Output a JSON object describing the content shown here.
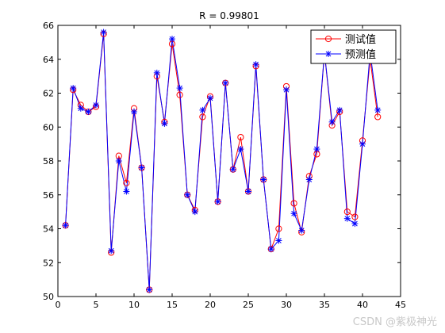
{
  "chart_data": {
    "type": "line",
    "title": "R = 0.99801",
    "xlabel": "",
    "ylabel": "",
    "xlim": [
      0,
      45
    ],
    "ylim": [
      50,
      66
    ],
    "x_ticks": [
      0,
      5,
      10,
      15,
      20,
      25,
      30,
      35,
      40,
      45
    ],
    "y_ticks": [
      50,
      52,
      54,
      56,
      58,
      60,
      62,
      64,
      66
    ],
    "grid": false,
    "legend_position": "top-right",
    "x": [
      1,
      2,
      3,
      4,
      5,
      6,
      7,
      8,
      9,
      10,
      11,
      12,
      13,
      14,
      15,
      16,
      17,
      18,
      19,
      20,
      21,
      22,
      23,
      24,
      25,
      26,
      27,
      28,
      29,
      30,
      31,
      32,
      33,
      34,
      35,
      36,
      37,
      38,
      39,
      40,
      41,
      42
    ],
    "series": [
      {
        "name": "测试值",
        "color": "#ff0000",
        "marker": "circle",
        "values": [
          54.2,
          62.2,
          61.3,
          60.9,
          61.2,
          65.5,
          52.6,
          58.3,
          56.7,
          61.1,
          57.6,
          50.4,
          63.0,
          60.3,
          64.9,
          61.9,
          56.0,
          55.1,
          60.6,
          61.8,
          55.6,
          62.6,
          57.5,
          59.4,
          56.2,
          63.6,
          56.9,
          52.8,
          54.0,
          62.4,
          55.5,
          53.8,
          57.1,
          58.4,
          64.4,
          60.1,
          60.9,
          55.0,
          54.7,
          59.2,
          64.0,
          60.6
        ]
      },
      {
        "name": "预测值",
        "color": "#0000ff",
        "marker": "star",
        "values": [
          54.2,
          62.3,
          61.1,
          60.9,
          61.3,
          65.6,
          52.7,
          58.0,
          56.2,
          60.9,
          57.6,
          50.4,
          63.2,
          60.2,
          65.2,
          62.3,
          56.0,
          55.0,
          61.0,
          61.7,
          55.6,
          62.6,
          57.5,
          58.7,
          56.2,
          63.7,
          56.9,
          52.8,
          53.3,
          62.2,
          54.9,
          53.9,
          56.9,
          58.7,
          64.4,
          60.3,
          61.0,
          54.6,
          54.3,
          59.0,
          64.4,
          61.0
        ]
      }
    ]
  },
  "watermark": "CSDN @紫极神光"
}
